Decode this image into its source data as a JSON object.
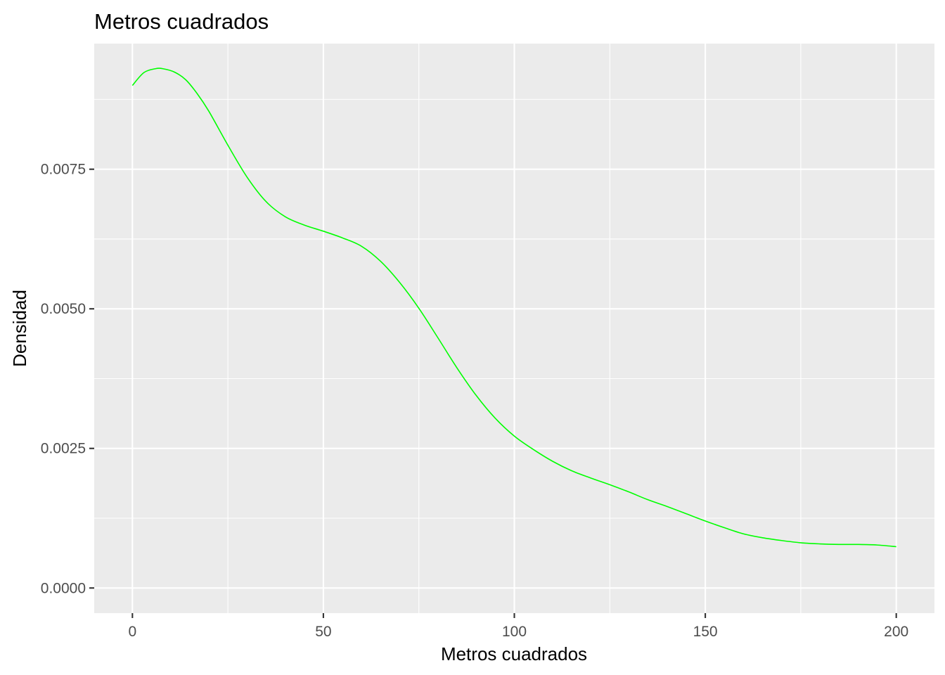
{
  "chart_data": {
    "type": "line",
    "title": "Metros cuadrados",
    "xlabel": "Metros cuadrados",
    "ylabel": "Densidad",
    "xlim": [
      -10,
      210
    ],
    "ylim": [
      -0.00045,
      0.00975
    ],
    "x_ticks": [
      0,
      50,
      100,
      150,
      200
    ],
    "x_tick_labels": [
      "0",
      "50",
      "100",
      "150",
      "200"
    ],
    "y_ticks": [
      0,
      0.0025,
      0.005,
      0.0075
    ],
    "y_tick_labels": [
      "0.0000",
      "0.0025",
      "0.0050",
      "0.0075"
    ],
    "grid": true,
    "legend": "none",
    "panel_background": "#ebebeb",
    "line_color": "#00ff00",
    "series": [
      {
        "x": [
          0,
          3,
          6,
          8,
          11,
          14,
          17,
          20,
          25,
          30,
          35,
          40,
          45,
          50,
          55,
          60,
          65,
          70,
          75,
          80,
          85,
          90,
          95,
          100,
          105,
          110,
          115,
          120,
          125,
          130,
          135,
          140,
          145,
          150,
          155,
          160,
          165,
          170,
          175,
          180,
          185,
          190,
          195,
          200
        ],
        "y": [
          0.009,
          0.00923,
          0.0093,
          0.0093,
          0.00924,
          0.0091,
          0.00885,
          0.00854,
          0.00793,
          0.00736,
          0.00692,
          0.00665,
          0.0065,
          0.00639,
          0.00627,
          0.00612,
          0.00585,
          0.00547,
          0.00501,
          0.00448,
          0.00394,
          0.00345,
          0.00304,
          0.00272,
          0.00248,
          0.00227,
          0.0021,
          0.00197,
          0.00185,
          0.00172,
          0.00158,
          0.00146,
          0.00133,
          0.0012,
          0.00108,
          0.00097,
          0.0009,
          0.00085,
          0.00081,
          0.00079,
          0.00078,
          0.00078,
          0.00077,
          0.00074
        ]
      }
    ]
  }
}
